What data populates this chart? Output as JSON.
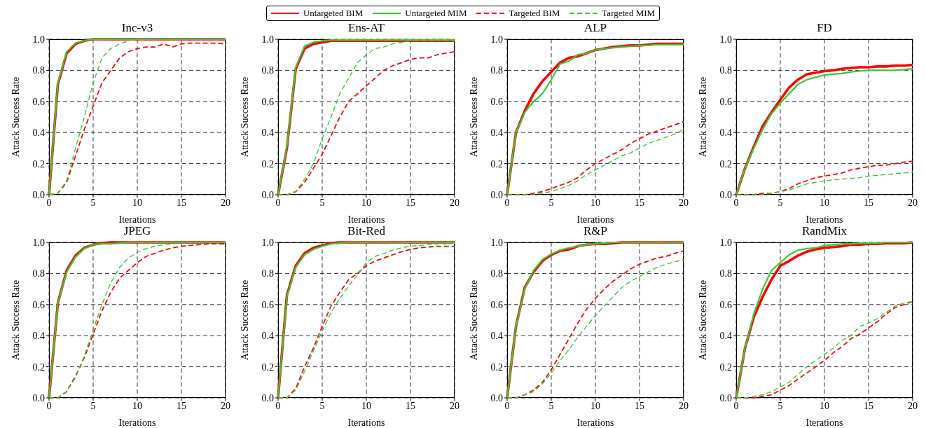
{
  "chart_data": [
    {
      "type": "line",
      "title": "Inc-v3",
      "xlabel": "Iterations",
      "ylabel": "Attack Success Rate",
      "legend": "top",
      "grid": true,
      "x": [
        0,
        1,
        2,
        3,
        4,
        5,
        6,
        7,
        8,
        9,
        10,
        11,
        12,
        13,
        14,
        15,
        16,
        17,
        18,
        19,
        20
      ],
      "xlim": [
        0,
        20
      ],
      "xticks": [
        0,
        5,
        10,
        15,
        20
      ],
      "ylim": [
        0,
        1
      ],
      "yticks": [
        {
          "value": 0,
          "label": "0.0"
        },
        {
          "value": 0.2,
          "label": "0.2"
        },
        {
          "value": 0.4,
          "label": "0.4"
        },
        {
          "value": 0.6,
          "label": "0.6"
        },
        {
          "value": 0.8,
          "label": "0.8"
        },
        {
          "value": 1,
          "label": "1.0"
        }
      ],
      "series": [
        {
          "name": "Untargeted BIM",
          "color": "#ff0000",
          "line_style": "solid",
          "values": [
            0,
            0.71,
            0.91,
            0.97,
            0.99,
            1,
            1,
            1,
            1,
            1,
            1,
            1,
            1,
            1,
            1,
            1,
            1,
            1,
            1,
            1,
            1
          ]
        },
        {
          "name": "Untargeted MIM",
          "color": "#33cc33",
          "line_style": "solid",
          "values": [
            0,
            0.72,
            0.92,
            0.975,
            0.99,
            1,
            1,
            1,
            1,
            1,
            1,
            1,
            1,
            1,
            1,
            1,
            1,
            1,
            1,
            1,
            1
          ]
        },
        {
          "name": "Targeted BIM",
          "color": "#ff0000",
          "line_style": "dashed",
          "values": [
            0,
            0.01,
            0.08,
            0.25,
            0.42,
            0.57,
            0.72,
            0.8,
            0.88,
            0.92,
            0.94,
            0.95,
            0.95,
            0.97,
            0.95,
            0.97,
            0.975,
            0.975,
            0.975,
            0.975,
            0.97
          ]
        },
        {
          "name": "Targeted MIM",
          "color": "#33cc33",
          "line_style": "dashed",
          "values": [
            0,
            0.01,
            0.09,
            0.3,
            0.5,
            0.72,
            0.88,
            0.94,
            0.97,
            0.99,
            1,
            1,
            1,
            1,
            1,
            1,
            1,
            1,
            1,
            1,
            1
          ]
        }
      ]
    },
    {
      "type": "line",
      "title": "Ens-AT",
      "xlabel": "Iterations",
      "ylabel": "Attack Success Rate",
      "grid": true,
      "x": [
        0,
        1,
        2,
        3,
        4,
        5,
        6,
        7,
        8,
        9,
        10,
        11,
        12,
        13,
        14,
        15,
        16,
        17,
        18,
        19,
        20
      ],
      "xlim": [
        0,
        20
      ],
      "xticks": [
        0,
        5,
        10,
        15,
        20
      ],
      "ylim": [
        0,
        1
      ],
      "yticks": [
        {
          "value": 0,
          "label": "0.0"
        },
        {
          "value": 0.2,
          "label": "0.2"
        },
        {
          "value": 0.4,
          "label": "0.4"
        },
        {
          "value": 0.6,
          "label": "0.6"
        },
        {
          "value": 0.8,
          "label": "0.8"
        },
        {
          "value": 1,
          "label": "1.0"
        }
      ],
      "series": [
        {
          "color": "#ff0000",
          "line_style": "solid",
          "values": [
            0,
            0.3,
            0.81,
            0.94,
            0.97,
            0.98,
            0.99,
            0.99,
            0.99,
            0.99,
            0.99,
            0.99,
            0.99,
            0.99,
            0.99,
            0.99,
            0.99,
            0.99,
            0.99,
            0.99,
            0.99
          ]
        },
        {
          "color": "#33cc33",
          "line_style": "solid",
          "values": [
            0,
            0.31,
            0.82,
            0.955,
            0.98,
            0.99,
            0.995,
            0.995,
            0.995,
            0.995,
            0.995,
            0.995,
            0.995,
            0.995,
            0.995,
            0.995,
            0.995,
            0.995,
            0.995,
            0.995,
            0.995
          ]
        },
        {
          "color": "#ff0000",
          "line_style": "dashed",
          "values": [
            0,
            0,
            0.02,
            0.08,
            0.17,
            0.26,
            0.38,
            0.5,
            0.6,
            0.65,
            0.7,
            0.75,
            0.8,
            0.83,
            0.85,
            0.87,
            0.88,
            0.88,
            0.9,
            0.91,
            0.92
          ]
        },
        {
          "color": "#33cc33",
          "line_style": "dashed",
          "values": [
            0,
            0,
            0.02,
            0.1,
            0.2,
            0.36,
            0.5,
            0.65,
            0.75,
            0.85,
            0.9,
            0.94,
            0.95,
            0.97,
            0.98,
            0.99,
            0.99,
            0.99,
            0.99,
            0.99,
            0.99
          ]
        }
      ]
    },
    {
      "type": "line",
      "title": "ALP",
      "xlabel": "Iterations",
      "ylabel": "Attack Success Rate",
      "grid": true,
      "x": [
        0,
        1,
        2,
        3,
        4,
        5,
        6,
        7,
        8,
        9,
        10,
        11,
        12,
        13,
        14,
        15,
        16,
        17,
        18,
        19,
        20
      ],
      "xlim": [
        0,
        20
      ],
      "xticks": [
        0,
        5,
        10,
        15,
        20
      ],
      "ylim": [
        0,
        1
      ],
      "yticks": [
        {
          "value": 0,
          "label": "0.0"
        },
        {
          "value": 0.2,
          "label": "0.2"
        },
        {
          "value": 0.4,
          "label": "0.4"
        },
        {
          "value": 0.6,
          "label": "0.6"
        },
        {
          "value": 0.8,
          "label": "0.8"
        },
        {
          "value": 1,
          "label": "1.0"
        }
      ],
      "series": [
        {
          "color": "#ff0000",
          "line_style": "solid",
          "values": [
            0,
            0.4,
            0.54,
            0.65,
            0.73,
            0.79,
            0.85,
            0.88,
            0.89,
            0.91,
            0.93,
            0.94,
            0.95,
            0.955,
            0.96,
            0.96,
            0.965,
            0.97,
            0.97,
            0.97,
            0.97
          ]
        },
        {
          "color": "#33cc33",
          "line_style": "solid",
          "values": [
            0,
            0.4,
            0.53,
            0.6,
            0.65,
            0.74,
            0.84,
            0.86,
            0.9,
            0.91,
            0.93,
            0.94,
            0.945,
            0.95,
            0.955,
            0.96,
            0.96,
            0.965,
            0.965,
            0.965,
            0.965
          ]
        },
        {
          "color": "#ff0000",
          "line_style": "dashed",
          "values": [
            0,
            0,
            0,
            0.01,
            0.02,
            0.04,
            0.06,
            0.08,
            0.11,
            0.16,
            0.2,
            0.23,
            0.26,
            0.29,
            0.33,
            0.36,
            0.39,
            0.41,
            0.43,
            0.45,
            0.47
          ]
        },
        {
          "color": "#33cc33",
          "line_style": "dashed",
          "values": [
            0,
            0,
            0,
            0,
            0.01,
            0.02,
            0.04,
            0.06,
            0.09,
            0.13,
            0.16,
            0.19,
            0.22,
            0.25,
            0.27,
            0.3,
            0.33,
            0.35,
            0.37,
            0.39,
            0.42
          ]
        }
      ]
    },
    {
      "type": "line",
      "title": "FD",
      "xlabel": "Iterations",
      "ylabel": "Attack Success Rate",
      "grid": true,
      "x": [
        0,
        1,
        2,
        3,
        4,
        5,
        6,
        7,
        8,
        9,
        10,
        11,
        12,
        13,
        14,
        15,
        16,
        17,
        18,
        19,
        20
      ],
      "xlim": [
        0,
        20
      ],
      "xticks": [
        0,
        5,
        10,
        15,
        20
      ],
      "ylim": [
        0,
        1
      ],
      "yticks": [
        {
          "value": 0,
          "label": "0.0"
        },
        {
          "value": 0.2,
          "label": "0.2"
        },
        {
          "value": 0.4,
          "label": "0.4"
        },
        {
          "value": 0.6,
          "label": "0.6"
        },
        {
          "value": 0.8,
          "label": "0.8"
        },
        {
          "value": 1,
          "label": "1.0"
        }
      ],
      "series": [
        {
          "color": "#ff0000",
          "line_style": "solid",
          "values": [
            0,
            0.17,
            0.31,
            0.44,
            0.53,
            0.61,
            0.69,
            0.74,
            0.775,
            0.785,
            0.795,
            0.8,
            0.81,
            0.815,
            0.82,
            0.82,
            0.825,
            0.825,
            0.83,
            0.83,
            0.835
          ]
        },
        {
          "color": "#33cc33",
          "line_style": "solid",
          "values": [
            0,
            0.17,
            0.3,
            0.42,
            0.52,
            0.59,
            0.65,
            0.71,
            0.74,
            0.755,
            0.77,
            0.775,
            0.78,
            0.79,
            0.795,
            0.8,
            0.8,
            0.8,
            0.8,
            0.805,
            0.81
          ]
        },
        {
          "color": "#ff0000",
          "line_style": "dashed",
          "values": [
            0,
            0,
            0,
            0.01,
            0.01,
            0.02,
            0.04,
            0.07,
            0.09,
            0.11,
            0.12,
            0.13,
            0.14,
            0.16,
            0.17,
            0.18,
            0.19,
            0.19,
            0.2,
            0.21,
            0.215
          ]
        },
        {
          "color": "#33cc33",
          "line_style": "dashed",
          "values": [
            0,
            0,
            0,
            0,
            0.01,
            0.02,
            0.03,
            0.05,
            0.07,
            0.08,
            0.09,
            0.095,
            0.1,
            0.105,
            0.11,
            0.12,
            0.125,
            0.13,
            0.135,
            0.14,
            0.145
          ]
        }
      ]
    },
    {
      "type": "line",
      "title": "JPEG",
      "xlabel": "Iterations",
      "ylabel": "Attack Success Rate",
      "grid": true,
      "x": [
        0,
        1,
        2,
        3,
        4,
        5,
        6,
        7,
        8,
        9,
        10,
        11,
        12,
        13,
        14,
        15,
        16,
        17,
        18,
        19,
        20
      ],
      "xlim": [
        0,
        20
      ],
      "xticks": [
        0,
        5,
        10,
        15,
        20
      ],
      "ylim": [
        0,
        1
      ],
      "yticks": [
        {
          "value": 0,
          "label": "0.0"
        },
        {
          "value": 0.2,
          "label": "0.2"
        },
        {
          "value": 0.4,
          "label": "0.4"
        },
        {
          "value": 0.6,
          "label": "0.6"
        },
        {
          "value": 0.8,
          "label": "0.8"
        },
        {
          "value": 1,
          "label": "1.0"
        }
      ],
      "series": [
        {
          "color": "#ff0000",
          "line_style": "solid",
          "values": [
            0,
            0.61,
            0.82,
            0.915,
            0.965,
            0.985,
            0.995,
            1,
            1,
            1,
            1,
            1,
            1,
            1,
            1,
            1,
            1,
            1,
            1,
            1,
            1
          ]
        },
        {
          "color": "#33cc33",
          "line_style": "solid",
          "values": [
            0,
            0.61,
            0.81,
            0.905,
            0.96,
            0.985,
            0.99,
            0.99,
            0.995,
            1,
            1,
            1,
            1,
            1,
            1,
            1,
            1,
            1,
            1,
            1,
            1
          ]
        },
        {
          "color": "#ff0000",
          "line_style": "dashed",
          "values": [
            0,
            0,
            0.04,
            0.14,
            0.26,
            0.41,
            0.56,
            0.68,
            0.77,
            0.82,
            0.87,
            0.91,
            0.93,
            0.95,
            0.965,
            0.975,
            0.98,
            0.985,
            0.99,
            0.99,
            0.99
          ]
        },
        {
          "color": "#33cc33",
          "line_style": "dashed",
          "values": [
            0,
            0,
            0.04,
            0.13,
            0.27,
            0.44,
            0.6,
            0.74,
            0.84,
            0.9,
            0.935,
            0.96,
            0.975,
            0.985,
            0.99,
            0.995,
            1,
            1,
            1,
            1,
            1
          ]
        }
      ]
    },
    {
      "type": "line",
      "title": "Bit-Red",
      "xlabel": "Iterations",
      "ylabel": "Attack Success Rate",
      "grid": true,
      "x": [
        0,
        1,
        2,
        3,
        4,
        5,
        6,
        7,
        8,
        9,
        10,
        11,
        12,
        13,
        14,
        15,
        16,
        17,
        18,
        19,
        20
      ],
      "xlim": [
        0,
        20
      ],
      "xticks": [
        0,
        5,
        10,
        15,
        20
      ],
      "ylim": [
        0,
        1
      ],
      "yticks": [
        {
          "value": 0,
          "label": "0.0"
        },
        {
          "value": 0.2,
          "label": "0.2"
        },
        {
          "value": 0.4,
          "label": "0.4"
        },
        {
          "value": 0.6,
          "label": "0.6"
        },
        {
          "value": 0.8,
          "label": "0.8"
        },
        {
          "value": 1,
          "label": "1.0"
        }
      ],
      "series": [
        {
          "color": "#ff0000",
          "line_style": "solid",
          "values": [
            0,
            0.66,
            0.85,
            0.93,
            0.965,
            0.98,
            0.995,
            1,
            1,
            1,
            1,
            1,
            1,
            1,
            1,
            1,
            1,
            1,
            1,
            1,
            1
          ]
        },
        {
          "color": "#33cc33",
          "line_style": "solid",
          "values": [
            0,
            0.65,
            0.84,
            0.92,
            0.955,
            0.975,
            0.99,
            0.995,
            1,
            1,
            1,
            1,
            1,
            1,
            1,
            1,
            1,
            1,
            1,
            1,
            1
          ]
        },
        {
          "color": "#ff0000",
          "line_style": "dashed",
          "values": [
            0,
            0,
            0.06,
            0.2,
            0.32,
            0.46,
            0.59,
            0.68,
            0.76,
            0.8,
            0.85,
            0.88,
            0.9,
            0.92,
            0.94,
            0.955,
            0.965,
            0.97,
            0.975,
            0.975,
            0.975
          ]
        },
        {
          "color": "#33cc33",
          "line_style": "dashed",
          "values": [
            0,
            0,
            0.05,
            0.17,
            0.3,
            0.43,
            0.55,
            0.64,
            0.72,
            0.79,
            0.87,
            0.91,
            0.93,
            0.95,
            0.965,
            0.975,
            0.98,
            0.985,
            0.99,
            0.99,
            0.995
          ]
        }
      ]
    },
    {
      "type": "line",
      "title": "R&P",
      "xlabel": "Iterations",
      "ylabel": "Attack Success Rate",
      "grid": true,
      "x": [
        0,
        1,
        2,
        3,
        4,
        5,
        6,
        7,
        8,
        9,
        10,
        11,
        12,
        13,
        14,
        15,
        16,
        17,
        18,
        19,
        20
      ],
      "xlim": [
        0,
        20
      ],
      "xticks": [
        0,
        5,
        10,
        15,
        20
      ],
      "ylim": [
        0,
        1
      ],
      "yticks": [
        {
          "value": 0,
          "label": "0.0"
        },
        {
          "value": 0.2,
          "label": "0.2"
        },
        {
          "value": 0.4,
          "label": "0.4"
        },
        {
          "value": 0.6,
          "label": "0.6"
        },
        {
          "value": 0.8,
          "label": "0.8"
        },
        {
          "value": 1,
          "label": "1.0"
        }
      ],
      "series": [
        {
          "color": "#ff0000",
          "line_style": "solid",
          "values": [
            0,
            0.46,
            0.71,
            0.81,
            0.88,
            0.92,
            0.945,
            0.955,
            0.975,
            0.985,
            0.99,
            0.99,
            0.995,
            1,
            1,
            1,
            1,
            1,
            1,
            1,
            1
          ]
        },
        {
          "color": "#33cc33",
          "line_style": "solid",
          "values": [
            0,
            0.46,
            0.7,
            0.82,
            0.89,
            0.925,
            0.95,
            0.965,
            0.975,
            0.985,
            0.99,
            0.995,
            1,
            1,
            1,
            1,
            1,
            1,
            1,
            1,
            1
          ]
        },
        {
          "color": "#ff0000",
          "line_style": "dashed",
          "values": [
            0,
            0,
            0.02,
            0.05,
            0.1,
            0.18,
            0.28,
            0.38,
            0.48,
            0.57,
            0.64,
            0.7,
            0.75,
            0.79,
            0.83,
            0.86,
            0.88,
            0.9,
            0.91,
            0.93,
            0.945
          ]
        },
        {
          "color": "#33cc33",
          "line_style": "dashed",
          "values": [
            0,
            0,
            0.02,
            0.04,
            0.09,
            0.16,
            0.24,
            0.31,
            0.39,
            0.46,
            0.53,
            0.59,
            0.65,
            0.71,
            0.75,
            0.78,
            0.81,
            0.84,
            0.86,
            0.875,
            0.89
          ]
        }
      ]
    },
    {
      "type": "line",
      "title": "RandMix",
      "xlabel": "Iterations",
      "ylabel": "Attack Success Rate",
      "grid": true,
      "x": [
        0,
        1,
        2,
        3,
        4,
        5,
        6,
        7,
        8,
        9,
        10,
        11,
        12,
        13,
        14,
        15,
        16,
        17,
        18,
        19,
        20
      ],
      "xlim": [
        0,
        20
      ],
      "xticks": [
        0,
        5,
        10,
        15,
        20
      ],
      "ylim": [
        0,
        1
      ],
      "yticks": [
        {
          "value": 0,
          "label": "0.0"
        },
        {
          "value": 0.2,
          "label": "0.2"
        },
        {
          "value": 0.4,
          "label": "0.4"
        },
        {
          "value": 0.6,
          "label": "0.6"
        },
        {
          "value": 0.8,
          "label": "0.8"
        },
        {
          "value": 1,
          "label": "1.0"
        }
      ],
      "series": [
        {
          "color": "#ff0000",
          "line_style": "solid",
          "values": [
            0,
            0.32,
            0.52,
            0.65,
            0.76,
            0.85,
            0.88,
            0.915,
            0.94,
            0.955,
            0.965,
            0.97,
            0.975,
            0.985,
            0.985,
            0.99,
            0.99,
            0.995,
            0.995,
            0.995,
            1
          ]
        },
        {
          "color": "#33cc33",
          "line_style": "solid",
          "values": [
            0,
            0.32,
            0.54,
            0.7,
            0.82,
            0.87,
            0.92,
            0.95,
            0.96,
            0.965,
            0.98,
            0.985,
            0.99,
            0.99,
            0.995,
            0.995,
            0.995,
            1,
            1,
            1,
            1
          ]
        },
        {
          "color": "#ff0000",
          "line_style": "dashed",
          "values": [
            0,
            0,
            0,
            0.01,
            0.02,
            0.05,
            0.08,
            0.12,
            0.16,
            0.2,
            0.24,
            0.29,
            0.33,
            0.38,
            0.41,
            0.45,
            0.49,
            0.54,
            0.58,
            0.6,
            0.62
          ]
        },
        {
          "color": "#33cc33",
          "line_style": "dashed",
          "values": [
            0,
            0,
            0.01,
            0.02,
            0.04,
            0.07,
            0.1,
            0.15,
            0.2,
            0.24,
            0.28,
            0.32,
            0.37,
            0.4,
            0.46,
            0.48,
            0.51,
            0.55,
            0.59,
            0.61,
            0.62
          ]
        }
      ]
    }
  ]
}
